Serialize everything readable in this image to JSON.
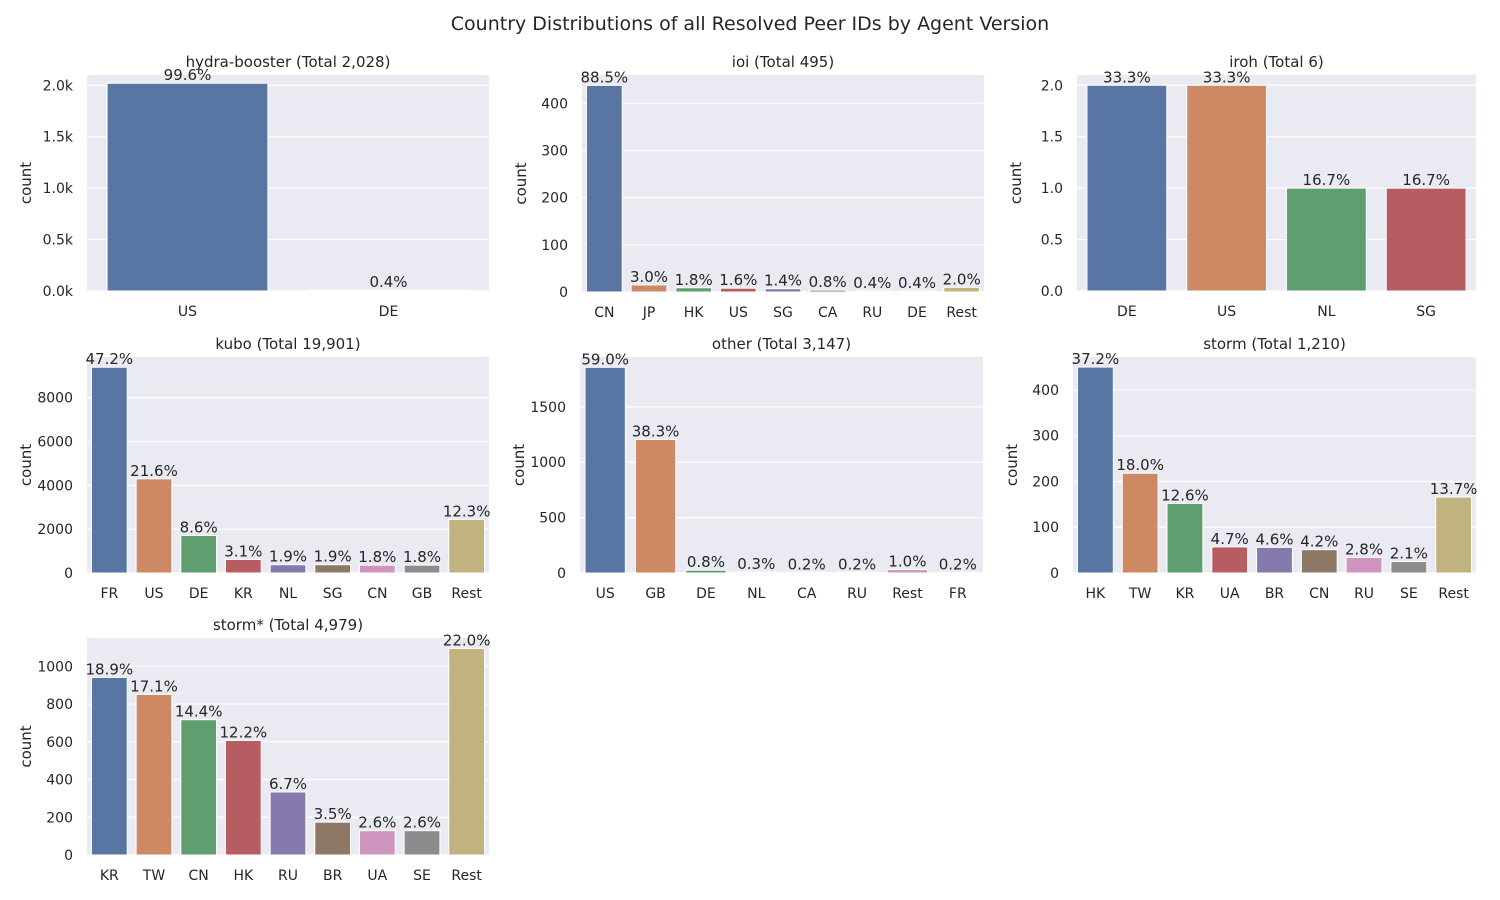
{
  "figure": {
    "title": "Country Distributions of all Resolved Peer IDs by Agent Version"
  },
  "palette": [
    "#5875a4",
    "#cc8963",
    "#5f9e6e",
    "#b55d60",
    "#857aab",
    "#8d7866",
    "#d095bf",
    "#8c8c8c",
    "#c1b37f"
  ],
  "chart_data": [
    {
      "type": "bar",
      "title": "hydra-booster (Total 2,028)",
      "ylabel": "count",
      "categories": [
        "US",
        "DE"
      ],
      "values": [
        2020,
        8
      ],
      "labels": [
        "99.6%",
        "0.4%"
      ],
      "ylim": [
        0,
        2100
      ],
      "yticks": [
        0,
        500,
        1000,
        1500,
        2000
      ],
      "ytick_labels": [
        "0.0k",
        "0.5k",
        "1.0k",
        "1.5k",
        "2.0k"
      ]
    },
    {
      "type": "bar",
      "title": "ioi (Total 495)",
      "ylabel": "count",
      "categories": [
        "CN",
        "JP",
        "HK",
        "US",
        "SG",
        "CA",
        "RU",
        "DE",
        "Rest"
      ],
      "values": [
        438,
        15,
        9,
        8,
        7,
        4,
        2,
        2,
        10
      ],
      "labels": [
        "88.5%",
        "3.0%",
        "1.8%",
        "1.6%",
        "1.4%",
        "0.8%",
        "0.4%",
        "0.4%",
        "2.0%"
      ],
      "ylim": [
        0,
        460
      ],
      "yticks": [
        0,
        100,
        200,
        300,
        400
      ],
      "ytick_labels": [
        "0",
        "100",
        "200",
        "300",
        "400"
      ]
    },
    {
      "type": "bar",
      "title": "iroh (Total 6)",
      "ylabel": "count",
      "categories": [
        "DE",
        "US",
        "NL",
        "SG"
      ],
      "values": [
        2,
        2,
        1,
        1
      ],
      "labels": [
        "33.3%",
        "33.3%",
        "16.7%",
        "16.7%"
      ],
      "ylim": [
        0,
        2.1
      ],
      "yticks": [
        0,
        0.5,
        1,
        1.5,
        2
      ],
      "ytick_labels": [
        "0.0",
        "0.5",
        "1.0",
        "1.5",
        "2.0"
      ]
    },
    {
      "type": "bar",
      "title": "kubo (Total 19,901)",
      "ylabel": "count",
      "categories": [
        "FR",
        "US",
        "DE",
        "KR",
        "NL",
        "SG",
        "CN",
        "GB",
        "Rest"
      ],
      "values": [
        9393,
        4299,
        1711,
        617,
        378,
        378,
        358,
        358,
        2448
      ],
      "labels": [
        "47.2%",
        "21.6%",
        "8.6%",
        "3.1%",
        "1.9%",
        "1.9%",
        "1.8%",
        "1.8%",
        "12.3%"
      ],
      "ylim": [
        0,
        9860
      ],
      "yticks": [
        0,
        2000,
        4000,
        6000,
        8000
      ],
      "ytick_labels": [
        "0",
        "2000",
        "4000",
        "6000",
        "8000"
      ]
    },
    {
      "type": "bar",
      "title": "other (Total 3,147)",
      "ylabel": "count",
      "categories": [
        "US",
        "GB",
        "DE",
        "NL",
        "CA",
        "RU",
        "Rest",
        "FR"
      ],
      "values": [
        1857,
        1205,
        25,
        9,
        6,
        6,
        31,
        6
      ],
      "labels": [
        "59.0%",
        "38.3%",
        "0.8%",
        "0.3%",
        "0.2%",
        "0.2%",
        "1.0%",
        "0.2%"
      ],
      "ylim": [
        0,
        1950
      ],
      "yticks": [
        0,
        500,
        1000,
        1500
      ],
      "ytick_labels": [
        "0",
        "500",
        "1000",
        "1500"
      ]
    },
    {
      "type": "bar",
      "title": "storm (Total 1,210)",
      "ylabel": "count",
      "categories": [
        "HK",
        "TW",
        "KR",
        "UA",
        "BR",
        "CN",
        "RU",
        "SE",
        "Rest"
      ],
      "values": [
        450,
        218,
        152,
        57,
        56,
        51,
        34,
        25,
        166
      ],
      "labels": [
        "37.2%",
        "18.0%",
        "12.6%",
        "4.7%",
        "4.6%",
        "4.2%",
        "2.8%",
        "2.1%",
        "13.7%"
      ],
      "ylim": [
        0,
        472
      ],
      "yticks": [
        0,
        100,
        200,
        300,
        400
      ],
      "ytick_labels": [
        "0",
        "100",
        "200",
        "300",
        "400"
      ]
    },
    {
      "type": "bar",
      "title": "storm* (Total 4,979)",
      "ylabel": "count",
      "categories": [
        "KR",
        "TW",
        "CN",
        "HK",
        "RU",
        "BR",
        "UA",
        "SE",
        "Rest"
      ],
      "values": [
        941,
        851,
        717,
        607,
        334,
        174,
        129,
        129,
        1095
      ],
      "labels": [
        "18.9%",
        "17.1%",
        "14.4%",
        "12.2%",
        "6.7%",
        "3.5%",
        "2.6%",
        "2.6%",
        "22.0%"
      ],
      "ylim": [
        0,
        1150
      ],
      "yticks": [
        0,
        200,
        400,
        600,
        800,
        1000
      ],
      "ytick_labels": [
        "0",
        "200",
        "400",
        "600",
        "800",
        "1000"
      ]
    }
  ]
}
